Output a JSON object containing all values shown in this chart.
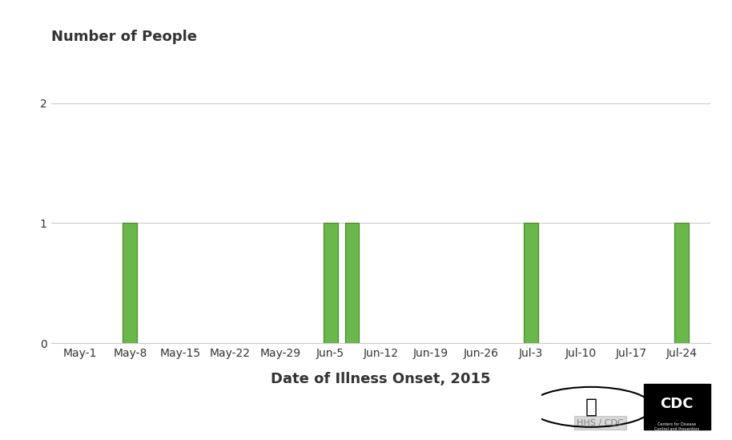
{
  "ylabel": "Number of People",
  "xlabel": "Date of Illness Onset, 2015",
  "bar_color": "#6ab84c",
  "bar_edge_color": "#4d8a2a",
  "background_color": "#ffffff",
  "ylim_max": 2.2,
  "yticks": [
    0,
    1,
    2
  ],
  "tick_labels": [
    "May-1",
    "May-8",
    "May-15",
    "May-22",
    "May-29",
    "Jun-5",
    "Jun-12",
    "Jun-19",
    "Jun-26",
    "Jul-3",
    "Jul-10",
    "Jul-17",
    "Jul-24"
  ],
  "tick_offsets": [
    0,
    7,
    14,
    21,
    28,
    35,
    42,
    49,
    56,
    63,
    70,
    77,
    84
  ],
  "bar_positions": [
    7,
    35,
    38,
    63,
    84
  ],
  "bar_values": [
    1,
    1,
    1,
    1,
    1
  ],
  "bar_width": 2.0,
  "grid_color": "#cccccc",
  "text_color": "#333333",
  "ylabel_fontsize": 13,
  "xlabel_fontsize": 13,
  "tick_fontsize": 10,
  "figure_width": 9.14,
  "figure_height": 5.49,
  "figure_dpi": 100
}
